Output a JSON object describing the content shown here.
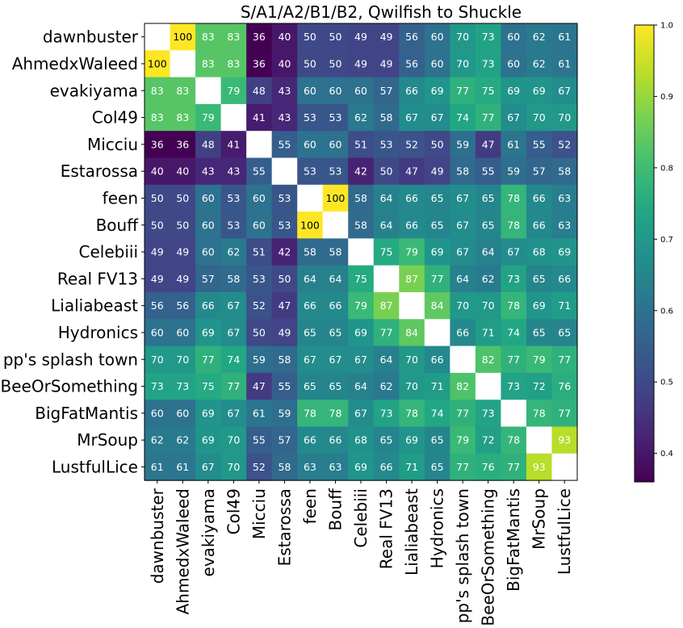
{
  "chart_data": {
    "type": "heatmap",
    "title": "S/A1/A2/B1/B2, Qwilfish to Shuckle",
    "labels": [
      "dawnbuster",
      "AhmedxWaleed",
      "evakiyama",
      "Col49",
      "Micciu",
      "Estarossa",
      "feen",
      "Bouff",
      "Celebiii",
      "Real FV13",
      "Lialiabeast",
      "Hydronics",
      "pp's splash town",
      "BeeOrSomething",
      "BigFatMantis",
      "MrSoup",
      "LustfulLice"
    ],
    "matrix": [
      [
        null,
        100,
        83,
        83,
        36,
        40,
        50,
        50,
        49,
        49,
        56,
        60,
        70,
        73,
        60,
        62,
        61
      ],
      [
        100,
        null,
        83,
        83,
        36,
        40,
        50,
        50,
        49,
        49,
        56,
        60,
        70,
        73,
        60,
        62,
        61
      ],
      [
        83,
        83,
        null,
        79,
        48,
        43,
        60,
        60,
        60,
        57,
        66,
        69,
        77,
        75,
        69,
        69,
        67
      ],
      [
        83,
        83,
        79,
        null,
        41,
        43,
        53,
        53,
        62,
        58,
        67,
        67,
        74,
        77,
        67,
        70,
        70
      ],
      [
        36,
        36,
        48,
        41,
        null,
        55,
        60,
        60,
        51,
        53,
        52,
        50,
        59,
        47,
        61,
        55,
        52
      ],
      [
        40,
        40,
        43,
        43,
        55,
        null,
        53,
        53,
        42,
        50,
        47,
        49,
        58,
        55,
        59,
        57,
        58
      ],
      [
        50,
        50,
        60,
        53,
        60,
        53,
        null,
        100,
        58,
        64,
        66,
        65,
        67,
        65,
        78,
        66,
        63
      ],
      [
        50,
        50,
        60,
        53,
        60,
        53,
        100,
        null,
        58,
        64,
        66,
        65,
        67,
        65,
        78,
        66,
        63
      ],
      [
        49,
        49,
        60,
        62,
        51,
        42,
        58,
        58,
        null,
        75,
        79,
        69,
        67,
        64,
        67,
        68,
        69
      ],
      [
        49,
        49,
        57,
        58,
        53,
        50,
        64,
        64,
        75,
        null,
        87,
        77,
        64,
        62,
        73,
        65,
        66
      ],
      [
        56,
        56,
        66,
        67,
        52,
        47,
        66,
        66,
        79,
        87,
        null,
        84,
        70,
        70,
        78,
        69,
        71
      ],
      [
        60,
        60,
        69,
        67,
        50,
        49,
        65,
        65,
        69,
        77,
        84,
        null,
        66,
        71,
        74,
        65,
        65
      ],
      [
        70,
        70,
        77,
        74,
        59,
        58,
        67,
        67,
        67,
        64,
        70,
        66,
        null,
        82,
        77,
        79,
        77
      ],
      [
        73,
        73,
        75,
        77,
        47,
        55,
        65,
        65,
        64,
        62,
        70,
        71,
        82,
        null,
        73,
        72,
        76
      ],
      [
        60,
        60,
        69,
        67,
        61,
        59,
        78,
        78,
        67,
        73,
        78,
        74,
        77,
        73,
        null,
        78,
        77
      ],
      [
        62,
        62,
        69,
        70,
        55,
        57,
        66,
        66,
        68,
        65,
        69,
        65,
        79,
        72,
        78,
        null,
        93
      ],
      [
        61,
        61,
        67,
        70,
        52,
        58,
        63,
        63,
        69,
        66,
        71,
        65,
        77,
        76,
        77,
        93,
        null
      ]
    ],
    "colorbar": {
      "range": [
        0.36,
        1.0
      ],
      "ticks": [
        "0.4",
        "0.5",
        "0.6",
        "0.7",
        "0.8",
        "0.9",
        "1.0"
      ],
      "colormap": "viridis"
    }
  }
}
